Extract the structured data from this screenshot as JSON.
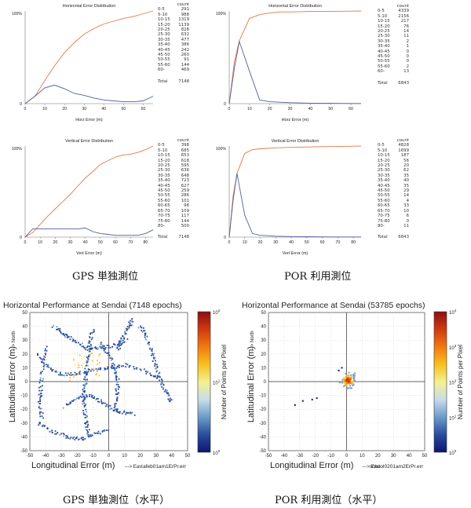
{
  "charts": [
    {
      "type": "line",
      "title": "Horizontal Error Distribution",
      "xlabel": "Horz Error (m)",
      "xticks": [
        "0",
        "10",
        "20",
        "30",
        "40",
        "50",
        "60"
      ],
      "yticks": [
        "0",
        "100%"
      ],
      "xlim": [
        0,
        65
      ],
      "ylim": [
        0,
        100
      ],
      "series": [
        {
          "color": "#e07848",
          "x": [
            0,
            5,
            10,
            15,
            20,
            25,
            30,
            35,
            40,
            45,
            50,
            55,
            60,
            65
          ],
          "y": [
            0,
            8,
            25,
            41,
            55,
            66,
            75,
            81,
            86,
            89,
            92,
            94,
            97,
            100
          ]
        },
        {
          "color": "#5060a0",
          "x": [
            0,
            5,
            10,
            15,
            20,
            25,
            30,
            35,
            40,
            45,
            50,
            55,
            60,
            65
          ],
          "y": [
            0,
            8,
            17,
            20,
            16,
            11,
            9,
            6,
            4,
            3,
            2,
            2,
            3,
            8
          ]
        }
      ],
      "table": {
        "header": "count",
        "bins": [
          "0-5",
          "5-10",
          "10-15",
          "15-20",
          "20-25",
          "25-30",
          "30-35",
          "35-40",
          "40-45",
          "45-50",
          "50-55",
          "55-60",
          "60-"
        ],
        "counts": [
          "291",
          "988",
          "1319",
          "1139",
          "828",
          "632",
          "477",
          "386",
          "242",
          "260",
          "91",
          "144",
          "469"
        ],
        "total_label": "Total",
        "total": "7148"
      }
    },
    {
      "type": "line",
      "title": "Horizontal Error Distribution",
      "xlabel": "Horz Error (m)",
      "xticks": [
        "0",
        "10",
        "20",
        "30",
        "40",
        "50",
        "60"
      ],
      "yticks": [
        "0",
        "100%"
      ],
      "xlim": [
        0,
        65
      ],
      "ylim": [
        0,
        100
      ],
      "series": [
        {
          "color": "#e07848",
          "x": [
            0,
            2.5,
            5,
            10,
            15,
            20,
            25,
            30,
            40,
            50,
            60,
            65
          ],
          "y": [
            0,
            45,
            68,
            92,
            96,
            98,
            99,
            99,
            99.5,
            99.7,
            99.8,
            100
          ]
        },
        {
          "color": "#5060a0",
          "x": [
            0,
            2.5,
            5,
            10,
            15,
            20,
            30,
            40,
            50,
            60,
            65
          ],
          "y": [
            0,
            38,
            67,
            35,
            4,
            2,
            1,
            0.5,
            0.3,
            0.2,
            0.2
          ]
        }
      ],
      "table": {
        "header": "count",
        "bins": [
          "0-5",
          "5-10",
          "10-15",
          "15-20",
          "20-25",
          "25-30",
          "30-35",
          "35-40",
          "40-45",
          "45-50",
          "50-55",
          "55-60",
          "60-"
        ],
        "counts": [
          "4339",
          "2156",
          "217",
          "76",
          "14",
          "11",
          "2",
          "1",
          "0",
          "0",
          "0",
          "2",
          "13"
        ],
        "total_label": "Total",
        "total": "6843"
      }
    },
    {
      "type": "line",
      "title": "Vertical Error Distribution",
      "xlabel": "Vert Error (m)",
      "xticks": [
        "0",
        "10",
        "20",
        "30",
        "40",
        "50",
        "60",
        "70",
        "80"
      ],
      "yticks": [
        "0",
        "100%"
      ],
      "xlim": [
        0,
        85
      ],
      "ylim": [
        0,
        100
      ],
      "series": [
        {
          "color": "#e07848",
          "x": [
            0,
            5,
            10,
            15,
            20,
            25,
            30,
            35,
            40,
            45,
            50,
            55,
            60,
            65,
            70,
            75,
            80,
            85
          ],
          "y": [
            0,
            5,
            14,
            23,
            31,
            39,
            47,
            56,
            65,
            72,
            80,
            84,
            88,
            90,
            91,
            93,
            96,
            100
          ]
        },
        {
          "color": "#5060a0",
          "x": [
            0,
            5,
            10,
            15,
            20,
            25,
            30,
            35,
            40,
            45,
            50,
            55,
            60,
            65,
            70,
            75,
            80,
            85
          ],
          "y": [
            0,
            9,
            9,
            9,
            9,
            9,
            9,
            9,
            10,
            6,
            4,
            3,
            2,
            2,
            2,
            2,
            4,
            8
          ]
        }
      ],
      "table": {
        "header": "count",
        "bins": [
          "0-5",
          "5-10",
          "10-15",
          "15-20",
          "20-25",
          "25-30",
          "30-35",
          "35-40",
          "40-45",
          "45-50",
          "50-55",
          "55-60",
          "60-65",
          "65-70",
          "70-75",
          "75-80",
          "80-"
        ],
        "counts": [
          "398",
          "685",
          "653",
          "618",
          "595",
          "636",
          "648",
          "723",
          "627",
          "259",
          "286",
          "101",
          "96",
          "109",
          "117",
          "144",
          "500"
        ],
        "total_label": "Total",
        "total": "7148"
      }
    },
    {
      "type": "line",
      "title": "Vertical Error Distribution",
      "xlabel": "Vert Error (m)",
      "xticks": [
        "0",
        "10",
        "20",
        "30",
        "40",
        "50",
        "60",
        "70",
        "80"
      ],
      "yticks": [
        "0",
        "100%"
      ],
      "xlim": [
        0,
        85
      ],
      "ylim": [
        0,
        100
      ],
      "series": [
        {
          "color": "#e07848",
          "x": [
            0,
            2.5,
            5,
            10,
            15,
            20,
            30,
            40,
            50,
            60,
            70,
            80,
            85
          ],
          "y": [
            0,
            45,
            70,
            92,
            96,
            97,
            98,
            98.5,
            99,
            99.3,
            99.5,
            99.8,
            100
          ]
        },
        {
          "color": "#5060a0",
          "x": [
            0,
            2.5,
            5,
            10,
            15,
            20,
            30,
            40,
            50,
            60,
            70,
            80,
            85
          ],
          "y": [
            0,
            40,
            70,
            24,
            4,
            2,
            1,
            0.6,
            0.4,
            0.3,
            0.2,
            0.2,
            0.2
          ]
        }
      ],
      "table": {
        "header": "count",
        "bins": [
          "0-5",
          "5-10",
          "10-15",
          "15-20",
          "20-25",
          "25-30",
          "30-35",
          "35-40",
          "40-45",
          "45-50",
          "50-55",
          "55-60",
          "60-65",
          "65-70",
          "70-75",
          "75-80",
          "80-"
        ],
        "counts": [
          "4828",
          "1699",
          "187",
          "56",
          "20",
          "62",
          "35",
          "40",
          "35",
          "29",
          "14",
          "4",
          "33",
          "10",
          "6",
          "0",
          "11"
        ],
        "total_label": "Total",
        "total": "6843"
      }
    },
    {
      "type": "heatmap",
      "title": "Horizontal Performance at Sendai (7148 epochs)",
      "xlabel": "Longitudinal Error (m)",
      "ylabel": "Latitudinal Error (m)",
      "x_dir_label": "---> East",
      "y_dir_label": "---> North",
      "file_label": "afeb01am1ErPr.err",
      "colorbar_label": "Number of Points per Pixel",
      "xlim": [
        -50,
        50
      ],
      "ylim": [
        -50,
        50
      ],
      "xticks": [
        "-50",
        "-40",
        "-30",
        "-20",
        "-10",
        "0",
        "10",
        "20",
        "30",
        "40",
        "50"
      ],
      "yticks": [
        "50",
        "40",
        "30",
        "20",
        "10",
        "0",
        "-10",
        "-20",
        "-30",
        "-40",
        "-50"
      ],
      "colorbar_ticks": [
        "10^2",
        "10^1",
        "10^0"
      ],
      "colorbar_colors": [
        "#8a1010",
        "#d03a10",
        "#f07a10",
        "#f6c020",
        "#f4f090",
        "#c8dcea",
        "#6c9cc8",
        "#2a4c9c",
        "#0a1670"
      ]
    },
    {
      "type": "heatmap",
      "title": "Horizontal Performance at Sendai (53785 epochs)",
      "xlabel": "Longitudinal Error (m)",
      "ylabel": "Latitudinal Error (m)",
      "x_dir_label": "---> East",
      "y_dir_label": "---> North",
      "file_label": "school0201am2ErPr.err",
      "colorbar_label": "Number of Points per Pixel",
      "xlim": [
        -50,
        50
      ],
      "ylim": [
        -50,
        50
      ],
      "xticks": [
        "-50",
        "-40",
        "-30",
        "-20",
        "-10",
        "0",
        "10",
        "20",
        "30",
        "40",
        "50"
      ],
      "yticks": [
        "50",
        "40",
        "30",
        "20",
        "10",
        "0",
        "-10",
        "-20",
        "-30",
        "-40",
        "-50"
      ],
      "colorbar_ticks": [
        "10^4",
        "10^3",
        "10^2",
        "10^1",
        "10^0"
      ],
      "colorbar_colors": [
        "#8a1010",
        "#d03a10",
        "#f07a10",
        "#f6c020",
        "#f4f090",
        "#c8dcea",
        "#6c9cc8",
        "#2a4c9c",
        "#0a1670"
      ]
    }
  ],
  "captions": {
    "gps_single": "GPS 単独測位",
    "por_use": "POR 利用測位",
    "gps_single_horizontal": "GPS 単独測位（水平）",
    "por_use_horizontal": "POR 利用測位（水平）"
  }
}
